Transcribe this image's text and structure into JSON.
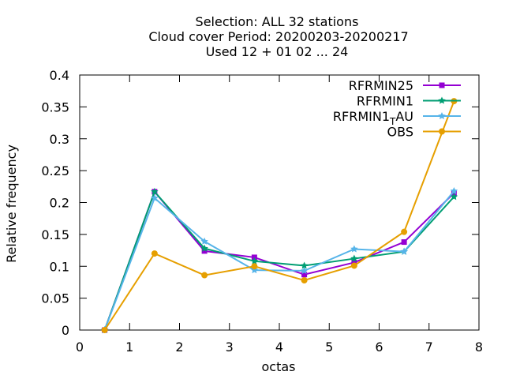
{
  "chart_data": {
    "type": "line",
    "title_lines": [
      "Selection: ALL      32 stations",
      "Cloud cover  Period: 20200203-20200217",
      "Used  12 + 01 02 ... 24"
    ],
    "xlabel": "octas",
    "ylabel": "Relative frequency",
    "xlim": [
      0,
      8
    ],
    "ylim": [
      0,
      0.4
    ],
    "xticks": [
      "0",
      "1",
      "2",
      "3",
      "4",
      "5",
      "6",
      "7",
      "8"
    ],
    "yticks": [
      "0",
      "0.05",
      "0.1",
      "0.15",
      "0.2",
      "0.25",
      "0.3",
      "0.35",
      "0.4"
    ],
    "x": [
      0.5,
      1.5,
      2.5,
      3.5,
      4.5,
      5.5,
      6.5,
      7.5
    ],
    "legend_position": "top-right",
    "grid": false,
    "series": [
      {
        "name": "RFRMIN25",
        "label_main": "RFRMIN25",
        "label_sub": "",
        "label_tail": "",
        "color": "#9400d3",
        "marker": "square",
        "values": [
          0,
          0.217,
          0.124,
          0.114,
          0.087,
          0.106,
          0.138,
          0.215
        ]
      },
      {
        "name": "RFRMIN1",
        "label_main": "RFRMIN1",
        "label_sub": "",
        "label_tail": "",
        "color": "#009e73",
        "marker": "star",
        "values": [
          0,
          0.217,
          0.128,
          0.108,
          0.101,
          0.112,
          0.123,
          0.209
        ]
      },
      {
        "name": "RFRMIN1_TAU",
        "label_main": "RFRMIN1",
        "label_sub": "T",
        "label_tail": "AU",
        "color": "#56b4e9",
        "marker": "star",
        "values": [
          0,
          0.207,
          0.139,
          0.094,
          0.093,
          0.127,
          0.123,
          0.218
        ]
      },
      {
        "name": "OBS",
        "label_main": "OBS",
        "label_sub": "",
        "label_tail": "",
        "color": "#e69f00",
        "marker": "circle",
        "values": [
          0,
          0.12,
          0.086,
          0.1,
          0.078,
          0.101,
          0.154,
          0.359
        ]
      }
    ]
  }
}
